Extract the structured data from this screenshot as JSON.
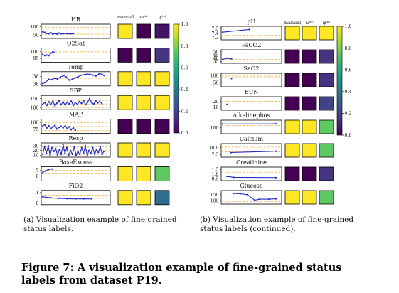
{
  "panels": [
    {
      "col_headers": [
        "manual",
        "ω⁽⁴⁾",
        "φ⁽⁴⁾"
      ],
      "colorbar": {
        "ticks": [
          "1.0",
          "0.8",
          "0.6",
          "0.4",
          "0.2",
          "0.0"
        ]
      },
      "rows": [
        {
          "label": "HR",
          "ticks": [
            "100",
            "50"
          ],
          "ylim": [
            30,
            115
          ],
          "refs": [
            55,
            75,
            95
          ],
          "series": [
            [
              0,
              70
            ],
            [
              2,
              66
            ],
            [
              4,
              60
            ],
            [
              6,
              58
            ],
            [
              8,
              64
            ],
            [
              10,
              55
            ],
            [
              12,
              60
            ],
            [
              14,
              56
            ],
            [
              16,
              62
            ],
            [
              18,
              58
            ],
            [
              20,
              57
            ],
            [
              22,
              60
            ],
            [
              24,
              58
            ],
            [
              27,
              57
            ],
            [
              30,
              58
            ]
          ],
          "scores": [
            1.0,
            0.0,
            0.05
          ]
        },
        {
          "label": "O2Sat",
          "ticks": [
            "100",
            "95"
          ],
          "ylim": [
            92,
            103
          ],
          "refs": [
            95,
            97.5,
            100
          ],
          "series": [
            [
              0,
              98
            ],
            [
              2,
              97
            ],
            [
              4,
              97.5
            ],
            [
              6,
              97
            ],
            [
              8,
              99
            ],
            [
              10,
              100
            ],
            [
              11,
              99.5
            ]
          ],
          "scores": [
            0.0,
            0.0,
            0.15
          ]
        },
        {
          "label": "Temp",
          "ticks": [
            "38",
            "36"
          ],
          "ylim": [
            35.5,
            39.2
          ],
          "refs": [
            36.5,
            37.5,
            38.3
          ],
          "series": [
            [
              0,
              36.1
            ],
            [
              3,
              36.4
            ],
            [
              6,
              37.2
            ],
            [
              9,
              37.1
            ],
            [
              12,
              37.5
            ],
            [
              15,
              37.3
            ],
            [
              18,
              37.8
            ],
            [
              21,
              38.2
            ],
            [
              24,
              37.8
            ],
            [
              27,
              37.0
            ],
            [
              30,
              37.2
            ],
            [
              33,
              37.6
            ],
            [
              36,
              37.9
            ],
            [
              39,
              38.3
            ],
            [
              42,
              38.4
            ],
            [
              45,
              38.6
            ],
            [
              48,
              38.5
            ],
            [
              51,
              38.3
            ],
            [
              54,
              38.1
            ],
            [
              57,
              38.6
            ],
            [
              60,
              38.6
            ],
            [
              62,
              38.2
            ]
          ],
          "scores": [
            1.0,
            1.0,
            1.0
          ]
        },
        {
          "label": "SBP",
          "ticks": [
            "150",
            "100"
          ],
          "ylim": [
            88,
            168
          ],
          "refs": [
            100,
            120,
            140
          ],
          "series": [
            [
              0,
              118
            ],
            [
              2,
              128
            ],
            [
              4,
              112
            ],
            [
              6,
              132
            ],
            [
              8,
              118
            ],
            [
              10,
              136
            ],
            [
              12,
              110
            ],
            [
              14,
              126
            ],
            [
              16,
              138
            ],
            [
              18,
              116
            ],
            [
              20,
              132
            ],
            [
              22,
              114
            ],
            [
              24,
              130
            ],
            [
              26,
              120
            ],
            [
              28,
              136
            ],
            [
              30,
              112
            ],
            [
              32,
              128
            ],
            [
              34,
              118
            ],
            [
              36,
              134
            ],
            [
              38,
              124
            ],
            [
              40,
              140
            ],
            [
              42,
              116
            ],
            [
              44,
              130
            ],
            [
              46,
              150
            ],
            [
              48,
              128
            ],
            [
              50,
              120
            ],
            [
              52,
              138
            ],
            [
              54,
              126
            ],
            [
              56,
              134
            ],
            [
              58,
              122
            ]
          ],
          "scores": [
            1.0,
            1.0,
            1.0
          ]
        },
        {
          "label": "MAP",
          "ticks": [
            "100",
            "75"
          ],
          "ylim": [
            60,
            112
          ],
          "refs": [
            70,
            85,
            100
          ],
          "series": [
            [
              0,
              86
            ],
            [
              2,
              92
            ],
            [
              4,
              80
            ],
            [
              6,
              88
            ],
            [
              8,
              78
            ],
            [
              10,
              84
            ],
            [
              12,
              90
            ],
            [
              14,
              76
            ],
            [
              16,
              82
            ],
            [
              18,
              86
            ],
            [
              20,
              80
            ],
            [
              22,
              88
            ],
            [
              24,
              78
            ],
            [
              26,
              84
            ],
            [
              28,
              74
            ],
            [
              30,
              80
            ],
            [
              32,
              72
            ]
          ],
          "scores": [
            0.0,
            0.0,
            0.0
          ]
        },
        {
          "label": "Resp",
          "ticks": [
            "30",
            "20",
            "10"
          ],
          "ylim": [
            6,
            36
          ],
          "refs": [
            12,
            20,
            28
          ],
          "series": [
            [
              0,
              12
            ],
            [
              2,
              28
            ],
            [
              4,
              14
            ],
            [
              6,
              30
            ],
            [
              8,
              10
            ],
            [
              10,
              26
            ],
            [
              12,
              18
            ],
            [
              14,
              24
            ],
            [
              16,
              10
            ],
            [
              18,
              22
            ],
            [
              20,
              12
            ],
            [
              22,
              32
            ],
            [
              24,
              14
            ],
            [
              26,
              26
            ],
            [
              28,
              10
            ],
            [
              30,
              20
            ],
            [
              32,
              12
            ],
            [
              34,
              28
            ],
            [
              36,
              10
            ],
            [
              38,
              18
            ],
            [
              40,
              12
            ],
            [
              42,
              26
            ],
            [
              44,
              14
            ],
            [
              46,
              30
            ],
            [
              48,
              10
            ],
            [
              50,
              20
            ],
            [
              52,
              14
            ],
            [
              54,
              26
            ],
            [
              56,
              12
            ],
            [
              58,
              22
            ],
            [
              60,
              16
            ],
            [
              62,
              28
            ],
            [
              64,
              12
            ],
            [
              66,
              18
            ]
          ],
          "scores": [
            1.0,
            1.0,
            1.0
          ]
        },
        {
          "label": "BaseExcess",
          "ticks": [
            "5",
            "0"
          ],
          "ylim": [
            -4,
            8
          ],
          "refs": [
            0,
            2.5,
            5
          ],
          "series": [
            [
              0,
              3
            ],
            [
              3,
              4.5
            ],
            [
              6,
              5.8
            ],
            [
              9,
              6
            ]
          ],
          "scores": [
            1.0,
            1.0,
            0.75
          ]
        },
        {
          "label": "FiO2",
          "ticks": [
            "1",
            "0"
          ],
          "ylim": [
            -0.15,
            1.2
          ],
          "refs": [
            0.2,
            0.45,
            0.75
          ],
          "series": [
            [
              0,
              0.6
            ],
            [
              8,
              0.5
            ],
            [
              16,
              0.45
            ],
            [
              24,
              0.42
            ],
            [
              32,
              0.4
            ],
            [
              40,
              0.4
            ],
            [
              48,
              0.4
            ]
          ],
          "scores": [
            1.0,
            1.0,
            0.35
          ]
        }
      ]
    },
    {
      "col_headers": [
        "manual",
        "ω⁽⁶⁾",
        "φ⁽⁶⁾"
      ],
      "colorbar": {
        "ticks": [
          "1.0",
          "0.8",
          "0.6",
          "0.4",
          "0.2",
          "0.0"
        ]
      },
      "rows": [
        {
          "label": "pH",
          "ticks": [
            "7.5",
            "7.4",
            "7.3"
          ],
          "ylim": [
            7.25,
            7.55
          ],
          "refs": [
            7.35,
            7.45
          ],
          "series": [
            [
              0,
              7.42
            ],
            [
              30,
              7.48
            ]
          ],
          "scores": [
            1.0,
            1.0,
            1.0
          ]
        },
        {
          "label": "PaCO2",
          "ticks": [
            "50",
            "45",
            "40",
            "35"
          ],
          "ylim": [
            32,
            53
          ],
          "refs": [
            38,
            45
          ],
          "series": [
            [
              0,
              38
            ],
            [
              5,
              40
            ],
            [
              10,
              39
            ]
          ],
          "scores": [
            0.0,
            0.0,
            0.15
          ]
        },
        {
          "label": "SaO2",
          "ticks": [
            "100",
            "50"
          ],
          "ylim": [
            20,
            115
          ],
          "refs": [
            90,
            100
          ],
          "series": [
            [
              10,
              78
            ]
          ],
          "scores": [
            0.0,
            0.0,
            0.15
          ]
        },
        {
          "label": "BUN",
          "ticks": [
            "20",
            "10"
          ],
          "ylim": [
            5,
            28
          ],
          "refs": [
            20
          ],
          "series": [
            [
              5,
              15
            ]
          ],
          "scores": [
            0.0,
            0.0,
            0.2
          ]
        },
        {
          "label": "Alkalinephos",
          "ticks": [
            "100"
          ],
          "ylim": [
            20,
            200
          ],
          "refs": [
            45,
            130
          ],
          "series": [
            [
              0,
              150
            ],
            [
              60,
              152
            ]
          ],
          "scores": [
            1.0,
            1.0,
            0.75
          ]
        },
        {
          "label": "Calcium",
          "ticks": [
            "10.0",
            "7.5"
          ],
          "ylim": [
            6.5,
            11.5
          ],
          "refs": [
            8.5,
            10.2
          ],
          "series": [
            [
              15,
              8.2
            ],
            [
              95,
              8.7
            ]
          ],
          "scores": [
            1.0,
            1.0,
            0.75
          ]
        },
        {
          "label": "Creatinine",
          "ticks": [
            "1.5",
            "1.0",
            "0.5"
          ],
          "ylim": [
            0.3,
            1.75
          ],
          "refs": [
            0.8,
            1.2
          ],
          "series": [
            [
              8,
              0.75
            ],
            [
              20,
              0.65
            ],
            [
              95,
              0.62
            ]
          ],
          "scores": [
            0.0,
            0.0,
            0.15
          ]
        },
        {
          "label": "Glucose",
          "ticks": [
            "150",
            "100"
          ],
          "ylim": [
            70,
            185
          ],
          "refs": [
            90,
            140
          ],
          "series": [
            [
              15,
              160
            ],
            [
              25,
              158
            ],
            [
              35,
              150
            ],
            [
              45,
              103
            ],
            [
              52,
              112
            ],
            [
              65,
              112
            ],
            [
              75,
              115
            ]
          ],
          "scores": [
            1.0,
            1.0,
            0.75
          ]
        }
      ]
    }
  ],
  "captions": {
    "a": "(a) Visualization example of fine-grained status labels.",
    "b": "(b) Visualization example of fine-grained status labels (continued).",
    "figure": "Figure 7: A visualization example of fine-grained status labels from dataset P19."
  },
  "chart_data": {
    "type": "line",
    "title": "",
    "colors": {
      "line": "#1f28c8",
      "reference": "#f5a623",
      "cmap_low": "#440154",
      "cmap_high": "#fde725"
    },
    "colorbar_range": [
      0,
      1
    ],
    "grid": false
  }
}
